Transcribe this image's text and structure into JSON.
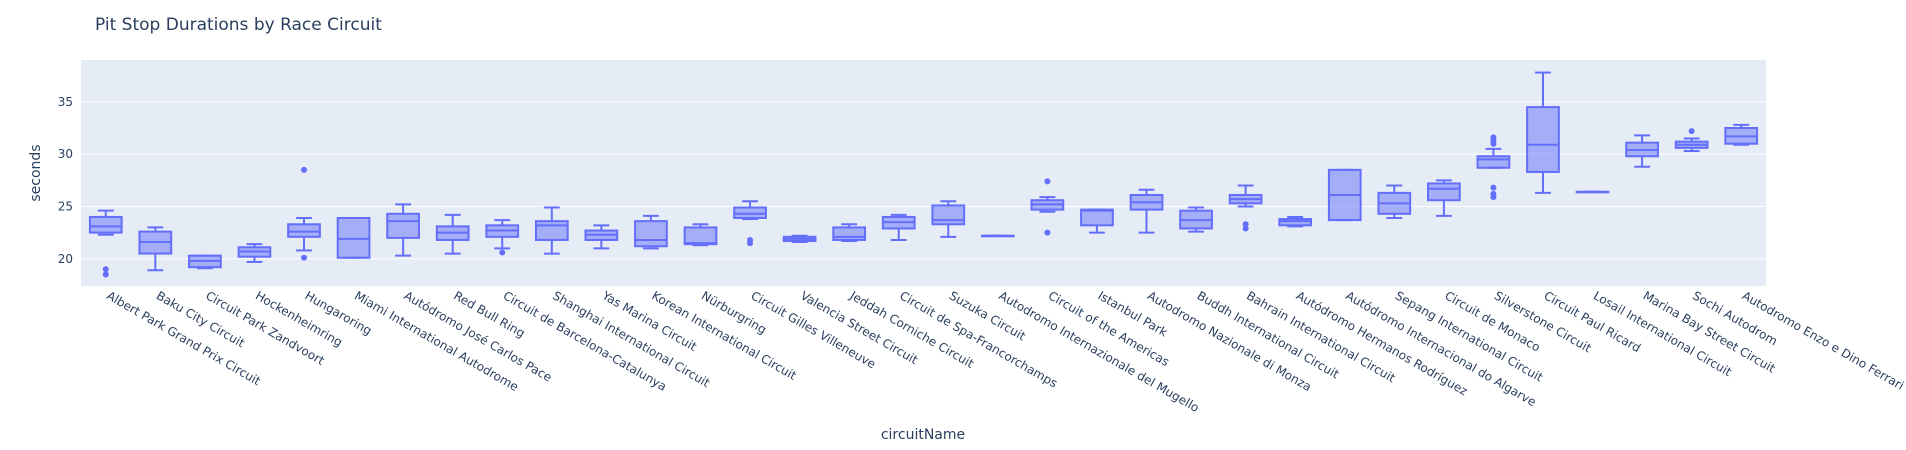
{
  "chart_data": {
    "type": "box",
    "title": "Pit Stop Durations by Race Circuit",
    "xlabel": "circuitName",
    "ylabel": "seconds",
    "yticks": [
      20,
      25,
      30,
      35
    ],
    "ylim": [
      17.4,
      39.0
    ],
    "grid": true,
    "color": "#636efa",
    "plot_bg": "#e5ecf6",
    "categories": [
      "Albert Park Grand Prix Circuit",
      "Baku City Circuit",
      "Circuit Park Zandvoort",
      "Hockenheimring",
      "Hungaroring",
      "Miami International Autodrome",
      "Autódromo José Carlos Pace",
      "Red Bull Ring",
      "Circuit de Barcelona-Catalunya",
      "Shanghai International Circuit",
      "Yas Marina Circuit",
      "Korean International Circuit",
      "Nürburgring",
      "Circuit Gilles Villeneuve",
      "Valencia Street Circuit",
      "Jeddah Corniche Circuit",
      "Circuit de Spa-Francorchamps",
      "Suzuka Circuit",
      "Autodromo Internazionale del Mugello",
      "Circuit of the Americas",
      "Istanbul Park",
      "Autodromo Nazionale di Monza",
      "Buddh International Circuit",
      "Bahrain International Circuit",
      "Autódromo Hermanos Rodríguez",
      "Autódromo Internacional do Algarve",
      "Sepang International Circuit",
      "Circuit de Monaco",
      "Silverstone Circuit",
      "Circuit Paul Ricard",
      "Losail International Circuit",
      "Marina Bay Street Circuit",
      "Sochi Autodrom",
      "Autodromo Enzo e Dino Ferrari"
    ],
    "boxes": [
      {
        "min": 22.3,
        "q1": 22.5,
        "median": 23.1,
        "q3": 24.0,
        "max": 24.6,
        "outliers": [
          19.0,
          18.5
        ]
      },
      {
        "min": 18.9,
        "q1": 20.5,
        "median": 21.6,
        "q3": 22.6,
        "max": 23.0,
        "outliers": []
      },
      {
        "min": 19.1,
        "q1": 19.2,
        "median": 19.8,
        "q3": 20.3,
        "max": 20.3,
        "outliers": []
      },
      {
        "min": 19.7,
        "q1": 20.2,
        "median": 20.7,
        "q3": 21.1,
        "max": 21.4,
        "outliers": []
      },
      {
        "min": 20.8,
        "q1": 22.1,
        "median": 22.6,
        "q3": 23.3,
        "max": 23.9,
        "outliers": [
          28.5,
          20.1
        ]
      },
      {
        "min": 20.1,
        "q1": 20.1,
        "median": 21.9,
        "q3": 23.9,
        "max": 23.9,
        "outliers": []
      },
      {
        "min": 20.3,
        "q1": 22.0,
        "median": 23.6,
        "q3": 24.3,
        "max": 25.2,
        "outliers": []
      },
      {
        "min": 20.5,
        "q1": 21.8,
        "median": 22.5,
        "q3": 23.1,
        "max": 24.2,
        "outliers": []
      },
      {
        "min": 21.0,
        "q1": 22.1,
        "median": 22.7,
        "q3": 23.2,
        "max": 23.7,
        "outliers": [
          20.6
        ]
      },
      {
        "min": 20.5,
        "q1": 21.8,
        "median": 23.2,
        "q3": 23.6,
        "max": 24.9,
        "outliers": []
      },
      {
        "min": 21.0,
        "q1": 21.8,
        "median": 22.3,
        "q3": 22.7,
        "max": 23.2,
        "outliers": []
      },
      {
        "min": 21.0,
        "q1": 21.2,
        "median": 21.8,
        "q3": 23.6,
        "max": 24.1,
        "outliers": []
      },
      {
        "min": 21.3,
        "q1": 21.4,
        "median": 21.5,
        "q3": 23.0,
        "max": 23.3,
        "outliers": []
      },
      {
        "min": 23.8,
        "q1": 23.9,
        "median": 24.3,
        "q3": 24.9,
        "max": 25.5,
        "outliers": [
          21.8,
          21.5
        ]
      },
      {
        "min": 21.6,
        "q1": 21.7,
        "median": 21.9,
        "q3": 22.1,
        "max": 22.2,
        "outliers": []
      },
      {
        "min": 21.7,
        "q1": 21.8,
        "median": 22.1,
        "q3": 23.0,
        "max": 23.3,
        "outliers": []
      },
      {
        "min": 21.8,
        "q1": 22.9,
        "median": 23.5,
        "q3": 24.0,
        "max": 24.2,
        "outliers": []
      },
      {
        "min": 22.1,
        "q1": 23.3,
        "median": 23.7,
        "q3": 25.1,
        "max": 25.5,
        "outliers": []
      },
      {
        "min": 22.2,
        "q1": 22.2,
        "median": 22.2,
        "q3": 22.2,
        "max": 22.2,
        "outliers": []
      },
      {
        "min": 24.5,
        "q1": 24.7,
        "median": 25.2,
        "q3": 25.6,
        "max": 25.9,
        "outliers": [
          27.4,
          22.5
        ]
      },
      {
        "min": 22.5,
        "q1": 23.2,
        "median": 24.6,
        "q3": 24.7,
        "max": 24.7,
        "outliers": []
      },
      {
        "min": 22.5,
        "q1": 24.7,
        "median": 25.4,
        "q3": 26.1,
        "max": 26.6,
        "outliers": []
      },
      {
        "min": 22.6,
        "q1": 22.9,
        "median": 23.7,
        "q3": 24.6,
        "max": 24.9,
        "outliers": []
      },
      {
        "min": 25.0,
        "q1": 25.3,
        "median": 25.7,
        "q3": 26.1,
        "max": 27.0,
        "outliers": [
          23.3,
          22.9
        ]
      },
      {
        "min": 23.1,
        "q1": 23.2,
        "median": 23.6,
        "q3": 23.8,
        "max": 24.0,
        "outliers": []
      },
      {
        "min": 23.7,
        "q1": 23.7,
        "median": 26.1,
        "q3": 28.5,
        "max": 28.5,
        "outliers": []
      },
      {
        "min": 23.9,
        "q1": 24.3,
        "median": 25.3,
        "q3": 26.3,
        "max": 27.0,
        "outliers": []
      },
      {
        "min": 24.1,
        "q1": 25.6,
        "median": 26.7,
        "q3": 27.2,
        "max": 27.5,
        "outliers": []
      },
      {
        "min": 28.7,
        "q1": 28.7,
        "median": 29.5,
        "q3": 29.8,
        "max": 30.5,
        "outliers": [
          31.6,
          31.3,
          31.0,
          26.8,
          26.2,
          25.9
        ]
      },
      {
        "min": 26.3,
        "q1": 28.3,
        "median": 30.9,
        "q3": 34.5,
        "max": 37.8,
        "outliers": []
      },
      {
        "min": 26.4,
        "q1": 26.4,
        "median": 26.4,
        "q3": 26.4,
        "max": 26.4,
        "outliers": []
      },
      {
        "min": 28.8,
        "q1": 29.8,
        "median": 30.4,
        "q3": 31.1,
        "max": 31.8,
        "outliers": []
      },
      {
        "min": 30.3,
        "q1": 30.6,
        "median": 30.9,
        "q3": 31.2,
        "max": 31.5,
        "outliers": [
          32.2
        ]
      },
      {
        "min": 30.9,
        "q1": 31.0,
        "median": 31.7,
        "q3": 32.5,
        "max": 32.8,
        "outliers": []
      }
    ]
  }
}
